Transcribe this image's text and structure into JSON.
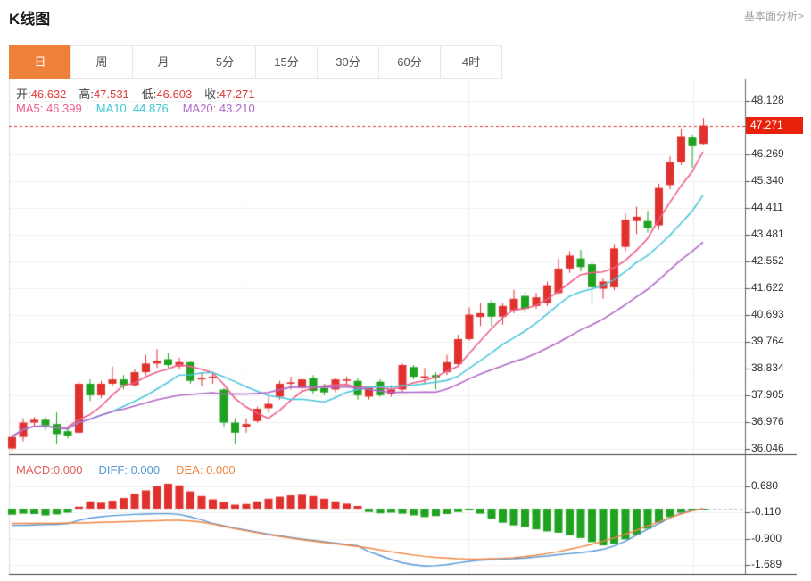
{
  "header": {
    "title": "K线图",
    "link": "基本面分析>"
  },
  "tabs": {
    "items": [
      {
        "label": "日",
        "active": true
      },
      {
        "label": "周",
        "active": false
      },
      {
        "label": "月",
        "active": false
      },
      {
        "label": "5分",
        "active": false
      },
      {
        "label": "15分",
        "active": false
      },
      {
        "label": "30分",
        "active": false
      },
      {
        "label": "60分",
        "active": false
      },
      {
        "label": "4时",
        "active": false
      }
    ]
  },
  "ohlc": {
    "open_label": "开:",
    "open": "46.632",
    "high_label": "高:",
    "high": "47.531",
    "low_label": "低:",
    "low": "46.603",
    "close_label": "收:",
    "close": "47.271"
  },
  "ma": {
    "ma5_label": "MA5:",
    "ma5": "46.399",
    "ma10_label": "MA10:",
    "ma10": "44.876",
    "ma20_label": "MA20:",
    "ma20": "43.210"
  },
  "macd_header": {
    "macd_label": "MACD:",
    "macd": "0.000",
    "diff_label": "DIFF:",
    "diff": "0.000",
    "dea_label": "DEA:",
    "dea": "0.000"
  },
  "price_axis": {
    "ticks": [
      48.128,
      46.269,
      45.34,
      44.411,
      43.481,
      42.552,
      41.622,
      40.693,
      39.764,
      38.834,
      37.905,
      36.976,
      36.046
    ],
    "current": "47.271"
  },
  "macd_axis": {
    "ticks": [
      0.68,
      -0.11,
      -0.9,
      -1.689
    ]
  },
  "colors": {
    "up": "#e0312e",
    "down": "#1fa21f",
    "ma5": "#ee5f8a",
    "ma10": "#4cc7dc",
    "ma20": "#b168c9",
    "diff": "#5596d8",
    "dea": "#f08642",
    "accent_orange": "#ee8139",
    "price_tag_bg": "#e8210d",
    "current_price_dash": "#e03131",
    "grid": "#efefef",
    "axis": "#666666"
  },
  "chart_data": {
    "type": "candlestick",
    "title": "K线图 (daily K-line with MA5/MA10/MA20 and MACD panel)",
    "legend_position": "top-left",
    "grid": true,
    "price_panel": {
      "ylim": [
        35.85,
        48.9
      ],
      "tick_step": 0.929,
      "current_price": 47.271,
      "ma_periods": [
        5,
        10,
        20
      ],
      "candles": {
        "open": [
          36.05,
          36.45,
          36.95,
          37.05,
          36.9,
          36.65,
          36.6,
          38.3,
          37.9,
          38.3,
          38.45,
          38.25,
          38.7,
          39.0,
          39.15,
          38.9,
          39.05,
          38.45,
          38.5,
          38.1,
          36.95,
          36.8,
          37.0,
          37.45,
          37.85,
          38.3,
          38.15,
          38.5,
          38.15,
          38.1,
          38.4,
          38.4,
          37.85,
          38.37,
          37.95,
          38.1,
          38.88,
          38.5,
          38.6,
          38.7,
          38.98,
          39.85,
          40.62,
          41.1,
          40.63,
          40.85,
          41.35,
          41.0,
          41.1,
          41.45,
          42.3,
          42.65,
          42.45,
          41.6,
          41.65,
          43.05,
          43.95,
          43.95,
          43.8,
          45.2,
          46.0,
          46.85,
          46.632
        ],
        "high": [
          36.55,
          37.1,
          37.15,
          37.15,
          37.3,
          36.8,
          38.4,
          38.45,
          38.4,
          38.9,
          38.6,
          38.8,
          39.3,
          39.5,
          39.35,
          39.2,
          39.1,
          38.7,
          38.65,
          38.15,
          37.1,
          37.1,
          37.5,
          37.85,
          38.4,
          38.55,
          38.5,
          38.6,
          38.3,
          38.5,
          38.55,
          38.5,
          38.2,
          38.45,
          38.25,
          39.0,
          38.95,
          38.85,
          38.7,
          39.3,
          40.0,
          40.95,
          41.1,
          41.2,
          41.1,
          41.56,
          41.5,
          41.45,
          41.85,
          42.65,
          42.9,
          42.95,
          42.55,
          41.95,
          43.15,
          44.2,
          44.45,
          44.3,
          45.25,
          46.2,
          47.15,
          46.95,
          47.531
        ],
        "low": [
          35.9,
          36.3,
          36.8,
          36.7,
          36.2,
          36.4,
          36.55,
          37.7,
          37.8,
          38.2,
          38.1,
          38.2,
          38.6,
          38.85,
          38.85,
          38.8,
          38.3,
          38.2,
          38.3,
          36.8,
          36.2,
          36.6,
          36.95,
          37.3,
          37.75,
          38.1,
          38.05,
          37.95,
          37.9,
          38.0,
          38.25,
          37.75,
          37.75,
          37.85,
          37.85,
          38.0,
          38.45,
          38.3,
          38.1,
          38.6,
          38.9,
          39.8,
          40.3,
          40.3,
          40.35,
          40.75,
          40.75,
          40.9,
          41.0,
          41.4,
          42.15,
          42.2,
          41.05,
          41.25,
          41.55,
          42.9,
          43.5,
          43.55,
          43.65,
          45.05,
          45.9,
          45.8,
          46.603
        ],
        "close": [
          36.45,
          36.95,
          37.05,
          36.85,
          36.55,
          36.5,
          38.3,
          37.9,
          38.3,
          38.45,
          38.25,
          38.7,
          39.0,
          39.1,
          38.95,
          39.05,
          38.4,
          38.5,
          38.55,
          36.95,
          36.6,
          36.9,
          37.43,
          37.6,
          38.3,
          38.35,
          38.45,
          38.05,
          38.0,
          38.45,
          38.45,
          37.9,
          38.15,
          37.9,
          38.1,
          38.95,
          38.54,
          38.56,
          38.52,
          39.05,
          39.85,
          40.7,
          40.75,
          40.63,
          41.0,
          41.25,
          40.9,
          41.3,
          41.72,
          42.3,
          42.75,
          42.35,
          41.65,
          41.85,
          43.0,
          44.0,
          44.1,
          43.7,
          45.1,
          46.0,
          46.9,
          46.55,
          47.271
        ]
      }
    },
    "macd_panel": {
      "ylim": [
        -1.955,
        1.473
      ],
      "ticks": [
        0.68,
        -0.11,
        -0.9,
        -1.689
      ],
      "hist": [
        -0.18,
        -0.15,
        -0.16,
        -0.2,
        -0.17,
        -0.12,
        0.06,
        0.22,
        0.18,
        0.24,
        0.32,
        0.45,
        0.55,
        0.68,
        0.75,
        0.7,
        0.52,
        0.38,
        0.28,
        0.2,
        0.12,
        0.14,
        0.22,
        0.3,
        0.36,
        0.4,
        0.42,
        0.38,
        0.3,
        0.22,
        0.15,
        0.08,
        -0.1,
        -0.14,
        -0.12,
        -0.15,
        -0.2,
        -0.25,
        -0.22,
        -0.16,
        -0.1,
        -0.05,
        -0.15,
        -0.3,
        -0.42,
        -0.5,
        -0.55,
        -0.62,
        -0.68,
        -0.72,
        -0.8,
        -0.88,
        -1.0,
        -1.1,
        -1.05,
        -0.92,
        -0.78,
        -0.6,
        -0.42,
        -0.25,
        -0.12,
        -0.05,
        -0.02
      ],
      "diff": [
        -0.5,
        -0.5,
        -0.49,
        -0.48,
        -0.47,
        -0.45,
        -0.35,
        -0.28,
        -0.24,
        -0.21,
        -0.19,
        -0.17,
        -0.16,
        -0.15,
        -0.15,
        -0.17,
        -0.24,
        -0.33,
        -0.44,
        -0.51,
        -0.58,
        -0.64,
        -0.7,
        -0.76,
        -0.81,
        -0.86,
        -0.91,
        -0.95,
        -0.99,
        -1.03,
        -1.07,
        -1.11,
        -1.28,
        -1.4,
        -1.52,
        -1.62,
        -1.68,
        -1.72,
        -1.71,
        -1.68,
        -1.63,
        -1.58,
        -1.55,
        -1.53,
        -1.51,
        -1.5,
        -1.48,
        -1.45,
        -1.42,
        -1.38,
        -1.35,
        -1.32,
        -1.28,
        -1.22,
        -1.12,
        -0.98,
        -0.8,
        -0.62,
        -0.45,
        -0.28,
        -0.14,
        -0.05,
        0.0
      ],
      "dea": [
        -0.44,
        -0.44,
        -0.44,
        -0.44,
        -0.44,
        -0.43,
        -0.43,
        -0.42,
        -0.41,
        -0.4,
        -0.39,
        -0.38,
        -0.37,
        -0.36,
        -0.35,
        -0.35,
        -0.37,
        -0.4,
        -0.46,
        -0.53,
        -0.6,
        -0.66,
        -0.72,
        -0.78,
        -0.83,
        -0.88,
        -0.93,
        -0.97,
        -1.01,
        -1.05,
        -1.09,
        -1.13,
        -1.18,
        -1.24,
        -1.29,
        -1.34,
        -1.39,
        -1.43,
        -1.46,
        -1.48,
        -1.5,
        -1.51,
        -1.51,
        -1.5,
        -1.49,
        -1.47,
        -1.44,
        -1.4,
        -1.35,
        -1.29,
        -1.22,
        -1.15,
        -1.07,
        -0.98,
        -0.88,
        -0.77,
        -0.65,
        -0.52,
        -0.4,
        -0.27,
        -0.16,
        -0.07,
        0.0
      ]
    }
  }
}
